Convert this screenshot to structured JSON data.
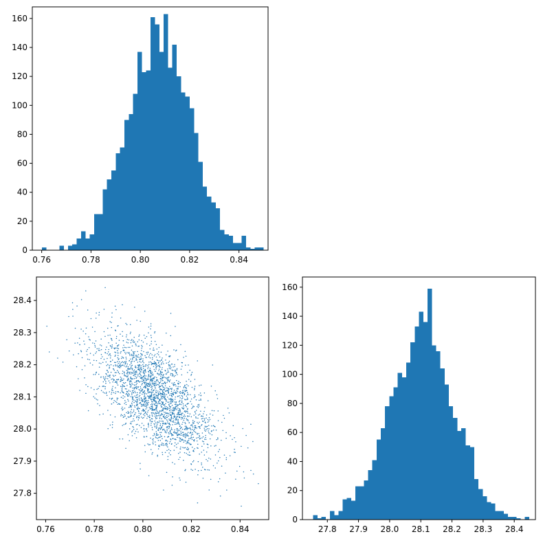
{
  "chart_data": [
    {
      "panel": "top-left",
      "type": "bar",
      "subtype": "histogram",
      "title": "",
      "xlabel": "",
      "ylabel": "",
      "color": "#1f77b4",
      "xlim": [
        0.7562,
        0.8518
      ],
      "ylim": [
        0,
        168
      ],
      "xticks": [
        {
          "value": 0.76,
          "label": "0.76"
        },
        {
          "value": 0.78,
          "label": "0.78"
        },
        {
          "value": 0.8,
          "label": "0.80"
        },
        {
          "value": 0.82,
          "label": "0.82"
        },
        {
          "value": 0.84,
          "label": "0.84"
        }
      ],
      "yticks": [
        {
          "value": 0,
          "label": "0"
        },
        {
          "value": 20,
          "label": "20"
        },
        {
          "value": 40,
          "label": "40"
        },
        {
          "value": 60,
          "label": "60"
        },
        {
          "value": 80,
          "label": "80"
        },
        {
          "value": 100,
          "label": "100"
        },
        {
          "value": 120,
          "label": "120"
        },
        {
          "value": 140,
          "label": "140"
        },
        {
          "value": 160,
          "label": "160"
        }
      ],
      "bin_start": 0.7601,
      "bin_width": 0.00176,
      "counts": [
        2,
        0,
        0,
        0,
        3,
        0,
        3,
        4,
        8,
        13,
        8,
        11,
        25,
        25,
        42,
        49,
        55,
        67,
        71,
        90,
        94,
        108,
        137,
        123,
        124,
        161,
        156,
        137,
        163,
        126,
        142,
        120,
        109,
        106,
        98,
        81,
        61,
        44,
        37,
        33,
        29,
        14,
        11,
        10,
        5,
        5,
        10,
        2,
        1,
        2,
        2
      ]
    },
    {
      "panel": "bottom-left",
      "type": "scatter",
      "title": "",
      "xlabel": "",
      "ylabel": "",
      "color": "#1f77b4",
      "xlim": [
        0.7562,
        0.8518
      ],
      "ylim": [
        27.718,
        28.473
      ],
      "xticks": [
        {
          "value": 0.76,
          "label": "0.76"
        },
        {
          "value": 0.78,
          "label": "0.78"
        },
        {
          "value": 0.8,
          "label": "0.80"
        },
        {
          "value": 0.82,
          "label": "0.82"
        },
        {
          "value": 0.84,
          "label": "0.84"
        }
      ],
      "yticks": [
        {
          "value": 27.8,
          "label": "27.8"
        },
        {
          "value": 27.9,
          "label": "27.9"
        },
        {
          "value": 28.0,
          "label": "28.0"
        },
        {
          "value": 28.1,
          "label": "28.1"
        },
        {
          "value": 28.2,
          "label": "28.2"
        },
        {
          "value": 28.3,
          "label": "28.3"
        },
        {
          "value": 28.4,
          "label": "28.4"
        }
      ],
      "n_points": 2400,
      "x_mean": 0.805,
      "x_std": 0.0125,
      "y_mean": 28.1,
      "y_std": 0.1,
      "correlation": -0.62,
      "outliers": [
        {
          "x": 0.7605,
          "y": 28.32
        },
        {
          "x": 0.7615,
          "y": 28.24
        },
        {
          "x": 0.7695,
          "y": 28.35
        },
        {
          "x": 0.7765,
          "y": 28.43
        },
        {
          "x": 0.7845,
          "y": 28.44
        },
        {
          "x": 0.8115,
          "y": 28.36
        },
        {
          "x": 0.8085,
          "y": 27.81
        },
        {
          "x": 0.8225,
          "y": 27.77
        },
        {
          "x": 0.8345,
          "y": 27.81
        },
        {
          "x": 0.8405,
          "y": 27.76
        },
        {
          "x": 0.8455,
          "y": 27.86
        },
        {
          "x": 0.8475,
          "y": 27.83
        },
        {
          "x": 0.8355,
          "y": 28.05
        },
        {
          "x": 0.8425,
          "y": 27.98
        }
      ]
    },
    {
      "panel": "bottom-right",
      "type": "bar",
      "subtype": "histogram",
      "title": "",
      "xlabel": "",
      "ylabel": "",
      "color": "#1f77b4",
      "xlim": [
        27.72,
        28.468
      ],
      "ylim": [
        0,
        167
      ],
      "xticks": [
        {
          "value": 27.8,
          "label": "27.8"
        },
        {
          "value": 27.9,
          "label": "27.9"
        },
        {
          "value": 28.0,
          "label": "28.0"
        },
        {
          "value": 28.1,
          "label": "28.1"
        },
        {
          "value": 28.2,
          "label": "28.2"
        },
        {
          "value": 28.3,
          "label": "28.3"
        },
        {
          "value": 28.4,
          "label": "28.4"
        }
      ],
      "yticks": [
        {
          "value": 0,
          "label": "0"
        },
        {
          "value": 20,
          "label": "20"
        },
        {
          "value": 40,
          "label": "40"
        },
        {
          "value": 60,
          "label": "60"
        },
        {
          "value": 80,
          "label": "80"
        },
        {
          "value": 100,
          "label": "100"
        },
        {
          "value": 120,
          "label": "120"
        },
        {
          "value": 140,
          "label": "140"
        },
        {
          "value": 160,
          "label": "160"
        }
      ],
      "bin_start": 27.754,
      "bin_width": 0.0136,
      "counts": [
        3,
        1,
        2,
        0,
        6,
        3,
        6,
        14,
        15,
        13,
        23,
        23,
        27,
        34,
        41,
        55,
        63,
        78,
        85,
        91,
        101,
        98,
        108,
        122,
        133,
        143,
        136,
        159,
        120,
        116,
        104,
        93,
        78,
        70,
        61,
        63,
        51,
        50,
        28,
        21,
        16,
        12,
        11,
        6,
        6,
        4,
        2,
        2,
        1,
        0,
        2
      ]
    }
  ]
}
